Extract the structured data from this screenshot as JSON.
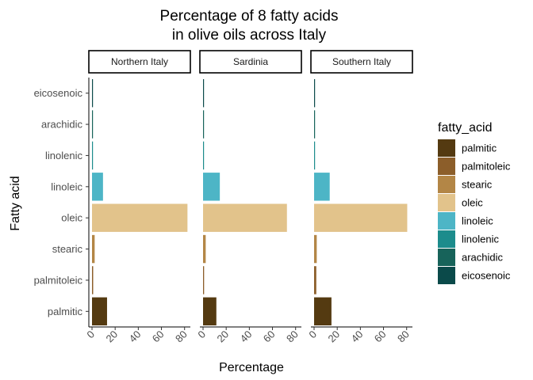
{
  "chart_data": {
    "type": "bar",
    "orientation": "horizontal",
    "title_lines": [
      "Percentage of 8 fatty acids",
      "in olive oils across Italy"
    ],
    "xlabel": "Percentage",
    "ylabel": "Fatty acid",
    "xlim": [
      0,
      85
    ],
    "x_ticks": [
      "0",
      "20",
      "40",
      "60",
      "80"
    ],
    "x_tick_values": [
      0,
      20,
      40,
      60,
      80
    ],
    "categories": [
      "palmitic",
      "palmitoleic",
      "stearic",
      "oleic",
      "linoleic",
      "linolenic",
      "arachidic",
      "eicosenoic"
    ],
    "grid": false,
    "legend_position": "right",
    "legend_title": "fatty_acid",
    "colors": {
      "palmitic": "#543a11",
      "palmitoleic": "#8c5e2a",
      "stearic": "#b38646",
      "oleic": "#e2c38b",
      "linoleic": "#4db5c6",
      "linolenic": "#1c8c8c",
      "arachidic": "#17635a",
      "eicosenoic": "#0b4a4a"
    },
    "panels": [
      {
        "name": "Northern Italy",
        "values": [
          13.0,
          1.0,
          2.3,
          82.5,
          9.5,
          0.4,
          0.4,
          0.05
        ]
      },
      {
        "name": "Sardinia",
        "values": [
          11.5,
          0.9,
          2.3,
          72.5,
          14.5,
          0.3,
          0.8,
          0.05
        ]
      },
      {
        "name": "Southern Italy",
        "values": [
          15.0,
          1.9,
          2.3,
          80.5,
          13.5,
          0.7,
          0.7,
          0.2
        ]
      }
    ]
  }
}
